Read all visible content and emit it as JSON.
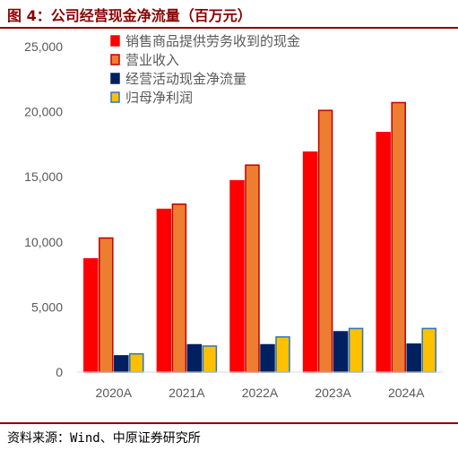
{
  "header": {
    "title": "图 4：公司经营现金净流量（百万元）"
  },
  "footer": {
    "source": "资料来源：Wind、中原证券研究所"
  },
  "colors": {
    "accent": "#8b0000",
    "axis_text": "#595959"
  },
  "chart_data": {
    "type": "bar",
    "title": "",
    "xlabel": "",
    "ylabel": "",
    "categories": [
      "2020A",
      "2021A",
      "2022A",
      "2023A",
      "2024A"
    ],
    "ylim": [
      0,
      25000
    ],
    "yticks": [
      "0",
      "5,000",
      "10,000",
      "15,000",
      "20,000",
      "25,000"
    ],
    "legend_position": "top-left",
    "grid": false,
    "series": [
      {
        "name": "销售商品提供劳务收到的现金",
        "color": "#ff0000",
        "border": "#ff0000",
        "values": [
          8700,
          12500,
          14700,
          16900,
          18400
        ]
      },
      {
        "name": "营业收入",
        "color": "#ed7d31",
        "border": "#c00000",
        "values": [
          10300,
          12900,
          15900,
          20100,
          20700
        ]
      },
      {
        "name": "经营活动现金净流量",
        "color": "#002060",
        "border": "#002060",
        "values": [
          1250,
          2100,
          2100,
          3100,
          2150
        ]
      },
      {
        "name": "归母净利润",
        "color": "#ffc000",
        "border": "#2e75b6",
        "values": [
          1400,
          2000,
          2700,
          3350,
          3350
        ]
      }
    ]
  }
}
